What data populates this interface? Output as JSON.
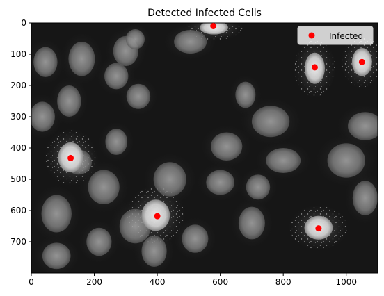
{
  "chart_data": {
    "type": "scatter",
    "title": "Detected Infected Cells",
    "xlabel": "",
    "ylabel": "",
    "image_size": [
      1100,
      800
    ],
    "xlim": [
      0,
      1100
    ],
    "ylim": [
      800,
      0
    ],
    "x_ticks": [
      0,
      200,
      400,
      600,
      800,
      1000
    ],
    "y_ticks": [
      0,
      100,
      200,
      300,
      400,
      500,
      600,
      700
    ],
    "grid": false,
    "legend_position": "top-right",
    "series": [
      {
        "name": "Infected",
        "color": "#ff0000",
        "marker": "circle",
        "points": [
          {
            "x": 578,
            "y": 10
          },
          {
            "x": 900,
            "y": 142
          },
          {
            "x": 1050,
            "y": 125
          },
          {
            "x": 125,
            "y": 432
          },
          {
            "x": 400,
            "y": 618
          },
          {
            "x": 912,
            "y": 657
          }
        ]
      }
    ],
    "background_image": "grayscale fluorescence microscopy"
  }
}
